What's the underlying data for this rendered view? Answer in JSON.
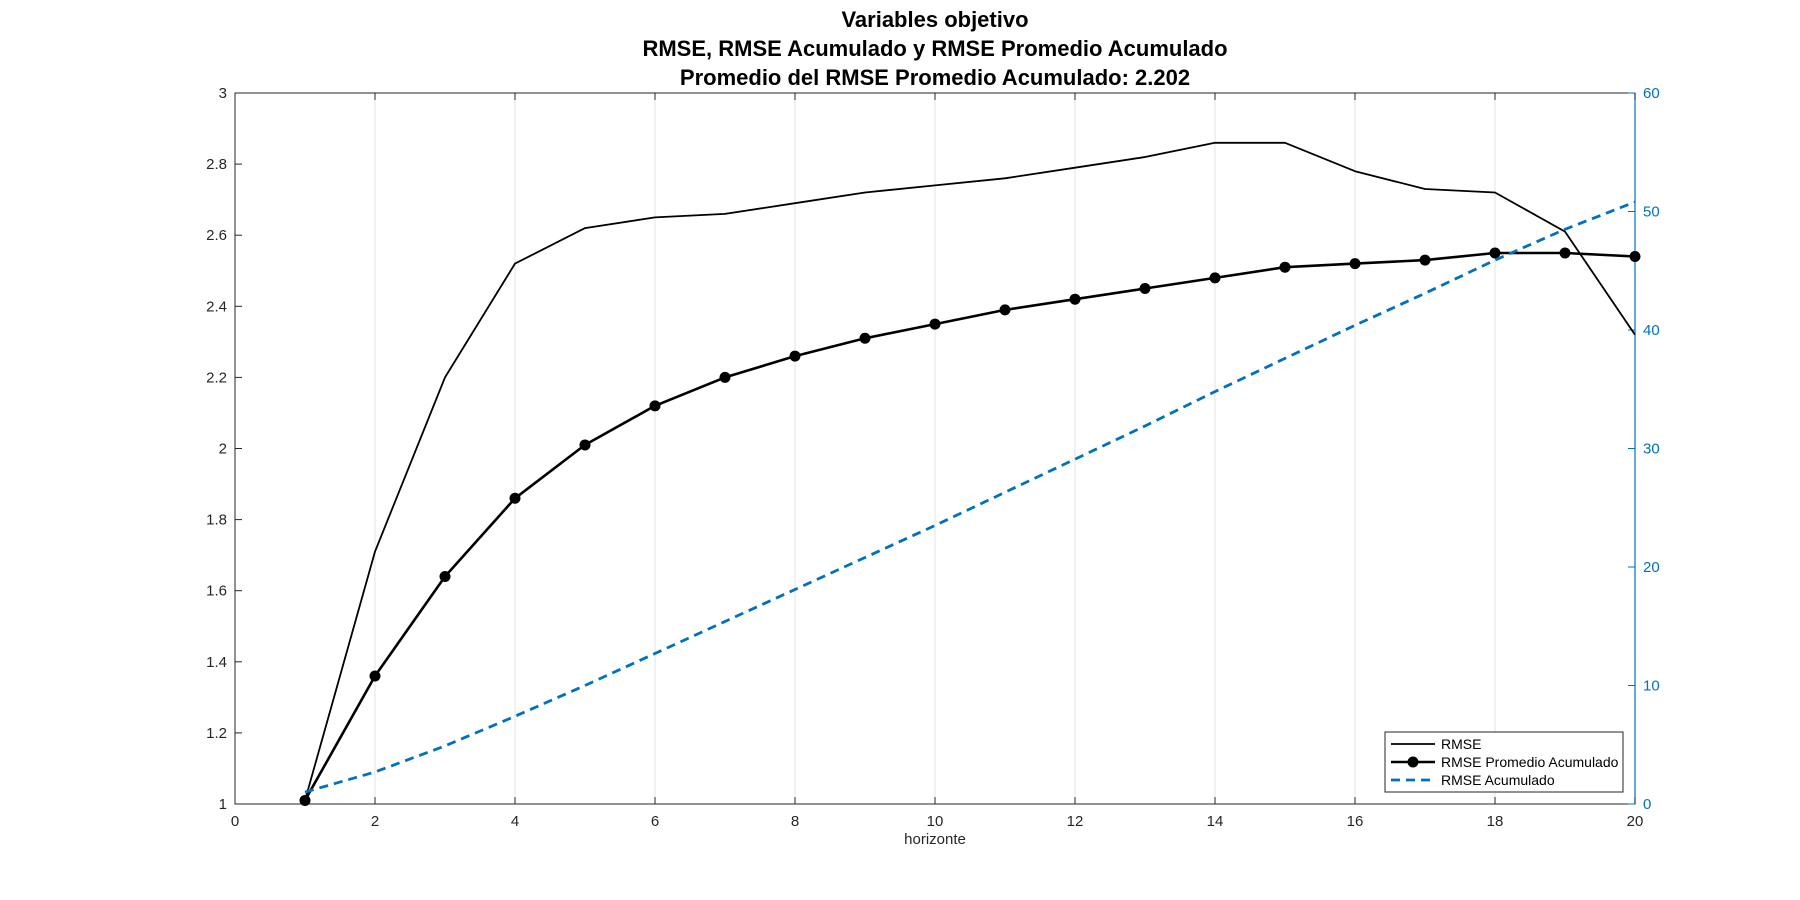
{
  "chart_data": {
    "type": "line",
    "title_lines": [
      "Variables objetivo",
      "RMSE, RMSE Acumulado y RMSE Promedio Acumulado",
      "Promedio del RMSE Promedio Acumulado:  2.202"
    ],
    "xlabel": "horizonte",
    "xlim": [
      0,
      20
    ],
    "xticks": [
      "0",
      "2",
      "4",
      "6",
      "8",
      "10",
      "12",
      "14",
      "16",
      "18",
      "20"
    ],
    "ylim_left": [
      1,
      3
    ],
    "yticks_left": [
      "1",
      "1.2",
      "1.4",
      "1.6",
      "1.8",
      "2",
      "2.2",
      "2.4",
      "2.6",
      "2.8",
      "3"
    ],
    "ylim_right": [
      0,
      60
    ],
    "yticks_right": [
      "0",
      "10",
      "20",
      "30",
      "40",
      "50",
      "60"
    ],
    "x_grid": true,
    "y_grid": false,
    "legend_position": "bottom-right",
    "x": [
      1,
      2,
      3,
      4,
      5,
      6,
      7,
      8,
      9,
      10,
      11,
      12,
      13,
      14,
      15,
      16,
      17,
      18,
      19,
      20
    ],
    "series": [
      {
        "name": "RMSE",
        "axis": "left",
        "color": "#000000",
        "style": "solid",
        "marker": "none",
        "values": [
          1.01,
          1.71,
          2.2,
          2.52,
          2.62,
          2.65,
          2.66,
          2.69,
          2.72,
          2.74,
          2.76,
          2.79,
          2.82,
          2.86,
          2.86,
          2.78,
          2.73,
          2.72,
          2.61,
          2.32
        ]
      },
      {
        "name": "RMSE Promedio Acumulado",
        "axis": "left",
        "color": "#000000",
        "style": "solid",
        "marker": "circle",
        "values": [
          1.01,
          1.36,
          1.64,
          1.86,
          2.01,
          2.12,
          2.2,
          2.26,
          2.31,
          2.35,
          2.39,
          2.42,
          2.45,
          2.48,
          2.51,
          2.52,
          2.53,
          2.55,
          2.55,
          2.54
        ]
      },
      {
        "name": "RMSE Acumulado",
        "axis": "right",
        "color": "#0072BD",
        "style": "dashed",
        "marker": "none",
        "values": [
          1.0,
          2.7,
          4.9,
          7.4,
          10.0,
          12.7,
          15.4,
          18.1,
          20.8,
          23.5,
          26.3,
          29.1,
          31.9,
          34.8,
          37.6,
          40.4,
          43.1,
          45.9,
          48.5,
          50.8
        ]
      }
    ]
  }
}
